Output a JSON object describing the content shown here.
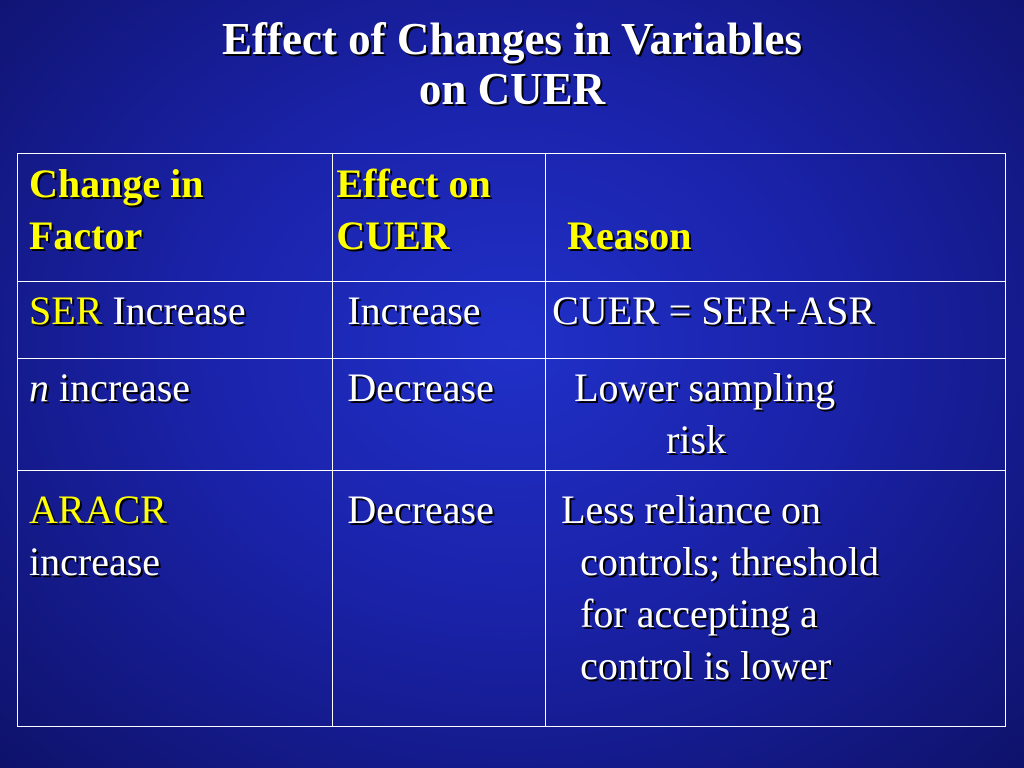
{
  "slide": {
    "title_line1": "Effect of Changes in Variables",
    "title_line2": "on CUER"
  },
  "table": {
    "headers": {
      "factor_line1": "Change in",
      "factor_line2": "Factor",
      "effect_line1": "Effect on",
      "effect_line2": "CUER",
      "reason": "Reason"
    },
    "rows": [
      {
        "factor_highlight": "SER",
        "factor_rest": " Increase",
        "effect": "Increase",
        "reason_line1": "CUER = SER+ASR"
      },
      {
        "factor_highlight": "n",
        "factor_rest": " increase",
        "effect": "Decrease",
        "reason_line1": "Lower sampling",
        "reason_line2": "risk"
      },
      {
        "factor_highlight": "ARACR",
        "factor_rest": "increase",
        "effect": "Decrease",
        "reason_line1": "Less reliance on",
        "reason_line2": "controls;  threshold",
        "reason_line3": "for accepting a",
        "reason_line4": "control is lower"
      }
    ]
  },
  "colors": {
    "background": "#1a22a8",
    "header_text": "#ffff00",
    "body_text": "#ffffff",
    "grid": "#ffffff"
  }
}
